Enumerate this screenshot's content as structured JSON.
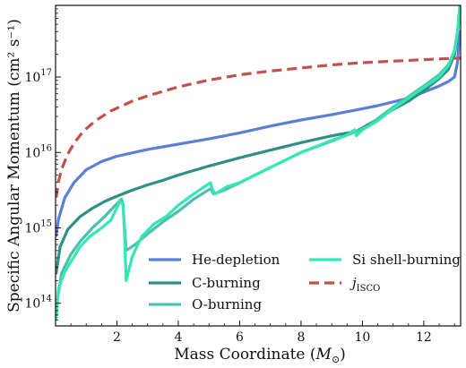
{
  "chart_data": {
    "type": "line",
    "xlabel": "Mass Coordinate (M⊙)",
    "ylabel": "Specific Angular Momentum (cm² s⁻¹)",
    "xlim": [
      0,
      13.2
    ],
    "ylim": [
      13.7,
      17.95
    ],
    "yscale": "log",
    "x_ticks": [
      2,
      4,
      6,
      8,
      10,
      12
    ],
    "y_ticks": [
      {
        "exp": 14,
        "label": "10",
        "sup": "14"
      },
      {
        "exp": 15,
        "label": "10",
        "sup": "15"
      },
      {
        "exp": 16,
        "label": "10",
        "sup": "16"
      },
      {
        "exp": 17,
        "label": "10",
        "sup": "17"
      }
    ],
    "grid": false,
    "legend_position": "lower-right",
    "series": [
      {
        "name": "He-depletion",
        "color": "#5a7fd8",
        "dash": false,
        "points": [
          [
            0.02,
            14.9
          ],
          [
            0.1,
            15.12
          ],
          [
            0.3,
            15.4
          ],
          [
            0.6,
            15.6
          ],
          [
            1,
            15.77
          ],
          [
            1.5,
            15.88
          ],
          [
            2,
            15.95
          ],
          [
            3,
            16.04
          ],
          [
            4,
            16.11
          ],
          [
            5,
            16.18
          ],
          [
            6,
            16.26
          ],
          [
            7,
            16.35
          ],
          [
            8,
            16.43
          ],
          [
            9,
            16.5
          ],
          [
            10,
            16.58
          ],
          [
            10.5,
            16.62
          ],
          [
            11,
            16.67
          ],
          [
            11.5,
            16.72
          ],
          [
            12,
            16.8
          ],
          [
            12.5,
            16.88
          ],
          [
            12.8,
            16.94
          ],
          [
            13,
            17.0
          ],
          [
            13.1,
            17.2
          ],
          [
            13.17,
            17.6
          ]
        ]
      },
      {
        "name": "C-burning",
        "color": "#2f8f86",
        "dash": false,
        "points": [
          [
            0.02,
            14.4
          ],
          [
            0.15,
            14.75
          ],
          [
            0.4,
            14.98
          ],
          [
            0.8,
            15.15
          ],
          [
            1.2,
            15.26
          ],
          [
            1.6,
            15.35
          ],
          [
            2,
            15.42
          ],
          [
            2.5,
            15.5
          ],
          [
            3,
            15.57
          ],
          [
            3.5,
            15.63
          ],
          [
            4,
            15.7
          ],
          [
            5,
            15.82
          ],
          [
            6,
            15.93
          ],
          [
            7,
            16.03
          ],
          [
            8,
            16.13
          ],
          [
            9,
            16.22
          ],
          [
            9.8,
            16.28
          ],
          [
            10.5,
            16.44
          ],
          [
            11,
            16.57
          ],
          [
            11.5,
            16.68
          ],
          [
            12,
            16.82
          ],
          [
            12.5,
            16.98
          ],
          [
            12.8,
            17.1
          ],
          [
            13,
            17.3
          ],
          [
            13.1,
            17.55
          ],
          [
            13.17,
            17.9
          ]
        ]
      },
      {
        "name": "O-burning",
        "color": "#4dbfb0",
        "dash": false,
        "points": [
          [
            0.02,
            13.95
          ],
          [
            0.2,
            14.4
          ],
          [
            0.5,
            14.65
          ],
          [
            0.8,
            14.82
          ],
          [
            1.2,
            15.0
          ],
          [
            1.6,
            15.15
          ],
          [
            1.9,
            15.28
          ],
          [
            2.15,
            15.38
          ],
          [
            2.2,
            15.3
          ],
          [
            2.3,
            14.7
          ],
          [
            2.6,
            14.78
          ],
          [
            3,
            14.92
          ],
          [
            3.5,
            15.08
          ],
          [
            4,
            15.22
          ],
          [
            4.5,
            15.38
          ],
          [
            5.05,
            15.52
          ],
          [
            5.15,
            15.45
          ],
          [
            5.5,
            15.5
          ],
          [
            6,
            15.6
          ],
          [
            7,
            15.8
          ],
          [
            8,
            16.0
          ],
          [
            9,
            16.15
          ],
          [
            9.8,
            16.28
          ],
          [
            10.2,
            16.35
          ],
          [
            10.6,
            16.48
          ],
          [
            11,
            16.6
          ],
          [
            11.5,
            16.74
          ],
          [
            12,
            16.88
          ],
          [
            12.5,
            17.03
          ],
          [
            12.8,
            17.16
          ],
          [
            13,
            17.35
          ],
          [
            13.1,
            17.6
          ],
          [
            13.17,
            17.92
          ]
        ]
      },
      {
        "name": "Si shell-burning",
        "color": "#33e8b2",
        "dash": false,
        "points": [
          [
            0.02,
            13.8
          ],
          [
            0.1,
            14.2
          ],
          [
            0.3,
            14.42
          ],
          [
            0.5,
            14.55
          ],
          [
            0.8,
            14.75
          ],
          [
            1.1,
            14.88
          ],
          [
            1.5,
            15.0
          ],
          [
            1.8,
            15.1
          ],
          [
            2.1,
            15.35
          ],
          [
            2.2,
            15.32
          ],
          [
            2.25,
            14.9
          ],
          [
            2.3,
            14.3
          ],
          [
            2.5,
            14.62
          ],
          [
            2.8,
            14.88
          ],
          [
            3.2,
            15.05
          ],
          [
            3.6,
            15.15
          ],
          [
            4,
            15.3
          ],
          [
            4.5,
            15.45
          ],
          [
            5.05,
            15.6
          ],
          [
            5.1,
            15.52
          ],
          [
            5.2,
            15.45
          ],
          [
            5.6,
            15.55
          ],
          [
            6,
            15.6
          ],
          [
            6.5,
            15.7
          ],
          [
            7,
            15.8
          ],
          [
            7.5,
            15.9
          ],
          [
            8,
            16.0
          ],
          [
            8.5,
            16.08
          ],
          [
            9,
            16.16
          ],
          [
            9.5,
            16.23
          ],
          [
            9.75,
            16.3
          ],
          [
            9.8,
            16.22
          ],
          [
            10,
            16.3
          ],
          [
            10.5,
            16.42
          ],
          [
            11,
            16.58
          ],
          [
            11.5,
            16.72
          ],
          [
            12,
            16.86
          ],
          [
            12.5,
            17.0
          ],
          [
            12.8,
            17.15
          ],
          [
            13,
            17.35
          ],
          [
            13.1,
            17.6
          ],
          [
            13.17,
            17.95
          ]
        ]
      },
      {
        "name": "jISCO",
        "name_main": "j",
        "name_sub": "ISCO",
        "color": "#c0524e",
        "dash": true,
        "points": [
          [
            0.02,
            15.4
          ],
          [
            0.1,
            15.62
          ],
          [
            0.2,
            15.78
          ],
          [
            0.4,
            15.98
          ],
          [
            0.6,
            16.12
          ],
          [
            0.9,
            16.28
          ],
          [
            1.3,
            16.42
          ],
          [
            1.8,
            16.55
          ],
          [
            2.5,
            16.68
          ],
          [
            3,
            16.75
          ],
          [
            4,
            16.87
          ],
          [
            5,
            16.96
          ],
          [
            6,
            17.03
          ],
          [
            7,
            17.08
          ],
          [
            8,
            17.12
          ],
          [
            9,
            17.16
          ],
          [
            10,
            17.19
          ],
          [
            11,
            17.21
          ],
          [
            12,
            17.23
          ],
          [
            12.5,
            17.24
          ],
          [
            13,
            17.25
          ],
          [
            13.2,
            17.25
          ]
        ]
      }
    ]
  }
}
